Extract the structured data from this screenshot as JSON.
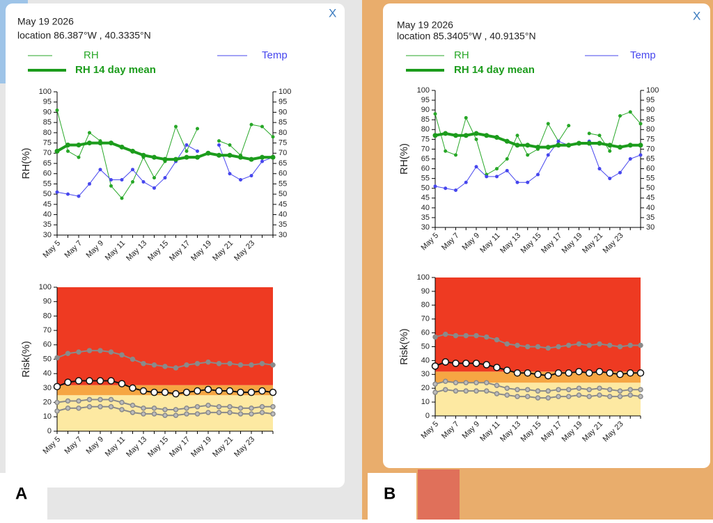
{
  "panels": [
    {
      "label": "A",
      "date": "May 19 2026",
      "location": "location 86.387°W , 40.3335°N",
      "close": "X"
    },
    {
      "label": "B",
      "date": "May 19 2026",
      "location": "location 85.3405°W , 40.9135°N",
      "close": "X"
    }
  ],
  "chart_data": [
    {
      "type": "line",
      "ylabel": "RH(%)",
      "categories": [
        "May 5",
        null,
        "May 7",
        null,
        "May 9",
        null,
        "May 11",
        null,
        "May 13",
        null,
        "May 15",
        null,
        "May 17",
        null,
        "May 19",
        null,
        "May 21",
        null,
        "May 23",
        null,
        null
      ],
      "ylim": [
        30,
        100
      ],
      "yticks": [
        30,
        35,
        40,
        45,
        50,
        55,
        60,
        65,
        70,
        75,
        80,
        85,
        90,
        95,
        100
      ],
      "y2lim": [
        30,
        100
      ],
      "y2ticks": [
        30,
        35,
        40,
        45,
        50,
        55,
        60,
        65,
        70,
        75,
        80,
        85,
        90,
        95,
        100
      ],
      "series": [
        {
          "name": "RH",
          "color": "#27a727",
          "width": 1,
          "values": [
            91,
            71,
            68,
            80,
            76,
            54,
            48,
            56,
            68,
            58,
            66,
            83,
            71,
            82,
            null,
            76,
            74,
            69,
            84,
            83,
            78
          ]
        },
        {
          "name": "Temp",
          "color": "#4646ee",
          "width": 1,
          "axis": "y2",
          "values": [
            51,
            50,
            49,
            55,
            62,
            57,
            57,
            62,
            56,
            53,
            58,
            66,
            74,
            71,
            null,
            74,
            60,
            57,
            59,
            66,
            68
          ]
        },
        {
          "name": "RH 14 day mean",
          "color": "#1c9c1c",
          "width": 4,
          "values": [
            71,
            74,
            74,
            75,
            75,
            75,
            73,
            71,
            69,
            68,
            67,
            67,
            68,
            68,
            70,
            69,
            69,
            68,
            67,
            68,
            68
          ]
        }
      ]
    },
    {
      "type": "line",
      "ylabel": "Risk(%)",
      "categories": [
        "May 5",
        null,
        "May 7",
        null,
        "May 9",
        null,
        "May 11",
        null,
        "May 13",
        null,
        "May 15",
        null,
        "May 17",
        null,
        "May 19",
        null,
        "May 21",
        null,
        "May 23",
        null,
        null
      ],
      "ylim": [
        0,
        100
      ],
      "yticks": [
        0,
        10,
        20,
        30,
        40,
        50,
        60,
        70,
        80,
        90,
        100
      ],
      "bands": [
        {
          "color": "#fde9a2",
          "range": [
            0,
            25
          ]
        },
        {
          "color": "#f6a643",
          "range": [
            25,
            32
          ]
        },
        {
          "color": "#ee3a22",
          "range": [
            32,
            100
          ]
        }
      ],
      "series": [
        {
          "color": "#8a8a8a",
          "width": 2,
          "marker_fill": "#8a8a8a",
          "values": [
            51,
            54,
            55,
            56,
            56,
            55,
            53,
            50,
            47,
            46,
            45,
            44,
            46,
            47,
            48,
            47,
            47,
            46,
            46,
            47,
            46
          ]
        },
        {
          "color": "#111111",
          "width": 2,
          "marker_fill": "#ffffff",
          "values": [
            31,
            34,
            35,
            35,
            35,
            35,
            33,
            30,
            28,
            27,
            27,
            26,
            27,
            28,
            29,
            28,
            28,
            27,
            27,
            28,
            27
          ]
        },
        {
          "color": "#8a8a8a",
          "width": 2,
          "marker_fill": "#bdbdbd",
          "values": [
            20,
            21,
            21,
            22,
            22,
            22,
            20,
            18,
            16,
            16,
            15,
            15,
            16,
            17,
            18,
            17,
            17,
            16,
            16,
            17,
            17
          ]
        },
        {
          "color": "#8a8a8a",
          "width": 2,
          "marker_fill": "#bdbdbd",
          "values": [
            14,
            16,
            16,
            17,
            17,
            17,
            15,
            13,
            12,
            12,
            11,
            11,
            12,
            12,
            13,
            13,
            13,
            12,
            12,
            13,
            12
          ]
        }
      ]
    },
    {
      "type": "line",
      "ylabel": "RH(%)",
      "categories": [
        "May 5",
        null,
        "May 7",
        null,
        "May 9",
        null,
        "May 11",
        null,
        "May 13",
        null,
        "May 15",
        null,
        "May 17",
        null,
        "May 19",
        null,
        "May 21",
        null,
        "May 23",
        null,
        null
      ],
      "ylim": [
        30,
        100
      ],
      "yticks": [
        30,
        35,
        40,
        45,
        50,
        55,
        60,
        65,
        70,
        75,
        80,
        85,
        90,
        95,
        100
      ],
      "y2lim": [
        30,
        100
      ],
      "y2ticks": [
        30,
        35,
        40,
        45,
        50,
        55,
        60,
        65,
        70,
        75,
        80,
        85,
        90,
        95,
        100
      ],
      "series": [
        {
          "name": "RH",
          "color": "#27a727",
          "width": 1,
          "values": [
            88,
            69,
            67,
            86,
            75,
            57,
            60,
            65,
            77,
            67,
            70,
            83,
            74,
            82,
            null,
            78,
            77,
            69,
            87,
            89,
            83
          ]
        },
        {
          "name": "Temp",
          "color": "#4646ee",
          "width": 1,
          "axis": "y2",
          "values": [
            51,
            50,
            49,
            53,
            61,
            56,
            56,
            59,
            53,
            53,
            57,
            67,
            74,
            72,
            null,
            74,
            60,
            55,
            58,
            65,
            67
          ]
        },
        {
          "name": "RH 14 day mean",
          "color": "#1c9c1c",
          "width": 4,
          "values": [
            77,
            78,
            77,
            77,
            78,
            77,
            76,
            74,
            72,
            72,
            71,
            71,
            72,
            72,
            73,
            73,
            73,
            72,
            71,
            72,
            72
          ]
        }
      ]
    },
    {
      "type": "line",
      "ylabel": "Risk(%)",
      "categories": [
        "May 5",
        null,
        "May 7",
        null,
        "May 9",
        null,
        "May 11",
        null,
        "May 13",
        null,
        "May 15",
        null,
        "May 17",
        null,
        "May 19",
        null,
        "May 21",
        null,
        "May 23",
        null,
        null
      ],
      "ylim": [
        0,
        100
      ],
      "yticks": [
        0,
        10,
        20,
        30,
        40,
        50,
        60,
        70,
        80,
        90,
        100
      ],
      "bands": [
        {
          "color": "#fde9a2",
          "range": [
            0,
            24
          ]
        },
        {
          "color": "#f6a643",
          "range": [
            24,
            32
          ]
        },
        {
          "color": "#ee3a22",
          "range": [
            32,
            100
          ]
        }
      ],
      "series": [
        {
          "color": "#8a8a8a",
          "width": 2,
          "marker_fill": "#8a8a8a",
          "values": [
            57,
            59,
            58,
            58,
            58,
            57,
            55,
            52,
            51,
            50,
            50,
            49,
            50,
            51,
            52,
            51,
            52,
            51,
            50,
            51,
            51
          ]
        },
        {
          "color": "#111111",
          "width": 2,
          "marker_fill": "#ffffff",
          "values": [
            36,
            39,
            38,
            38,
            38,
            37,
            35,
            33,
            31,
            31,
            30,
            29,
            31,
            31,
            32,
            31,
            32,
            31,
            30,
            31,
            31
          ]
        },
        {
          "color": "#8a8a8a",
          "width": 2,
          "marker_fill": "#bdbdbd",
          "values": [
            23,
            25,
            24,
            24,
            24,
            24,
            22,
            20,
            19,
            19,
            18,
            18,
            19,
            19,
            20,
            19,
            20,
            19,
            18,
            19,
            19
          ]
        },
        {
          "color": "#8a8a8a",
          "width": 2,
          "marker_fill": "#bdbdbd",
          "values": [
            17,
            19,
            18,
            18,
            18,
            18,
            16,
            15,
            14,
            14,
            13,
            13,
            14,
            14,
            15,
            14,
            15,
            14,
            14,
            15,
            14
          ]
        }
      ]
    }
  ]
}
